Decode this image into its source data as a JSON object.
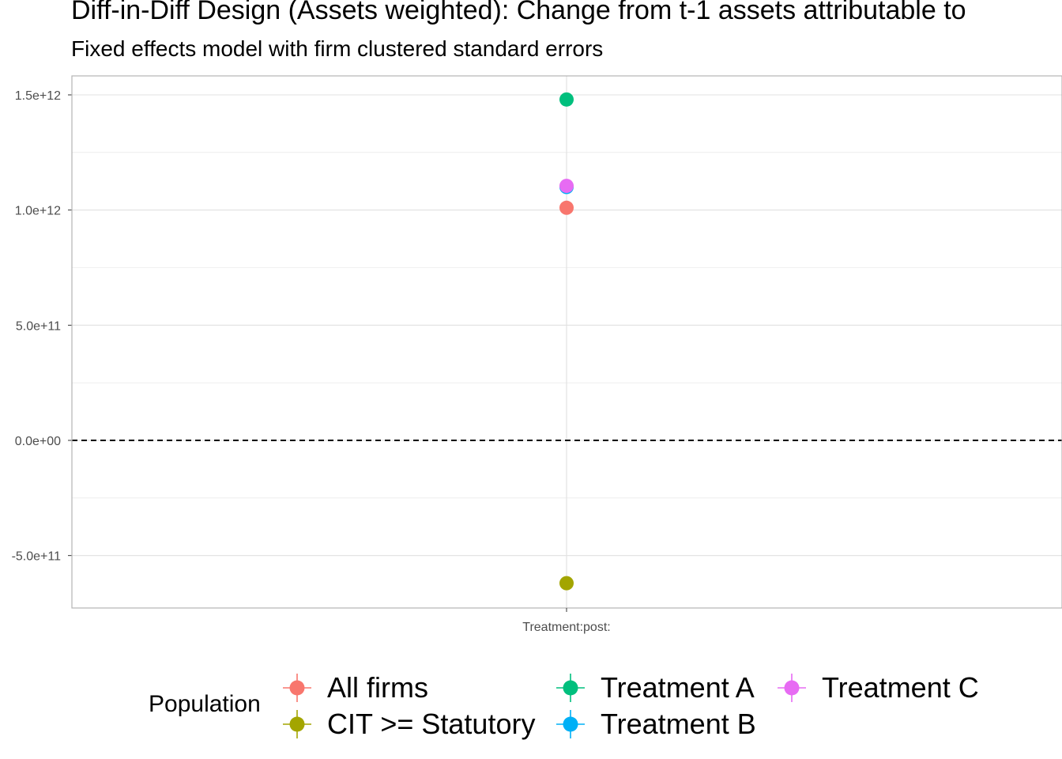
{
  "chart_data": {
    "type": "scatter",
    "title": "Diff-in-Diff Design (Assets weighted): Change from t-1 assets attributable to",
    "subtitle": "Fixed effects model with firm clustered standard errors",
    "xlabel": "",
    "ylabel": "",
    "categories": [
      "Treatment:post:"
    ],
    "ylim": [
      -710000000000.0,
      1580000000000.0
    ],
    "y_ticks": [
      -500000000000.0,
      0,
      500000000000.0,
      1000000000000.0,
      1500000000000.0
    ],
    "y_tick_labels": [
      "-5.0e+11",
      "0.0e+00",
      "5.0e+11",
      "1.0e+12",
      "1.5e+12"
    ],
    "reference_line": 0,
    "grid": true,
    "legend_title": "Population",
    "legend_position": "bottom",
    "series": [
      {
        "name": "All firms",
        "color": "#F8766D",
        "values": [
          1010000000000.0
        ]
      },
      {
        "name": "CIT >= Statutory",
        "color": "#A3A500",
        "values": [
          -620000000000.0
        ]
      },
      {
        "name": "Treatment A",
        "color": "#00BF7D",
        "values": [
          1480000000000.0
        ]
      },
      {
        "name": "Treatment B",
        "color": "#00B0F6",
        "values": [
          1100000000000.0
        ]
      },
      {
        "name": "Treatment C",
        "color": "#E76BF3",
        "values": [
          1105000000000.0
        ]
      }
    ]
  }
}
